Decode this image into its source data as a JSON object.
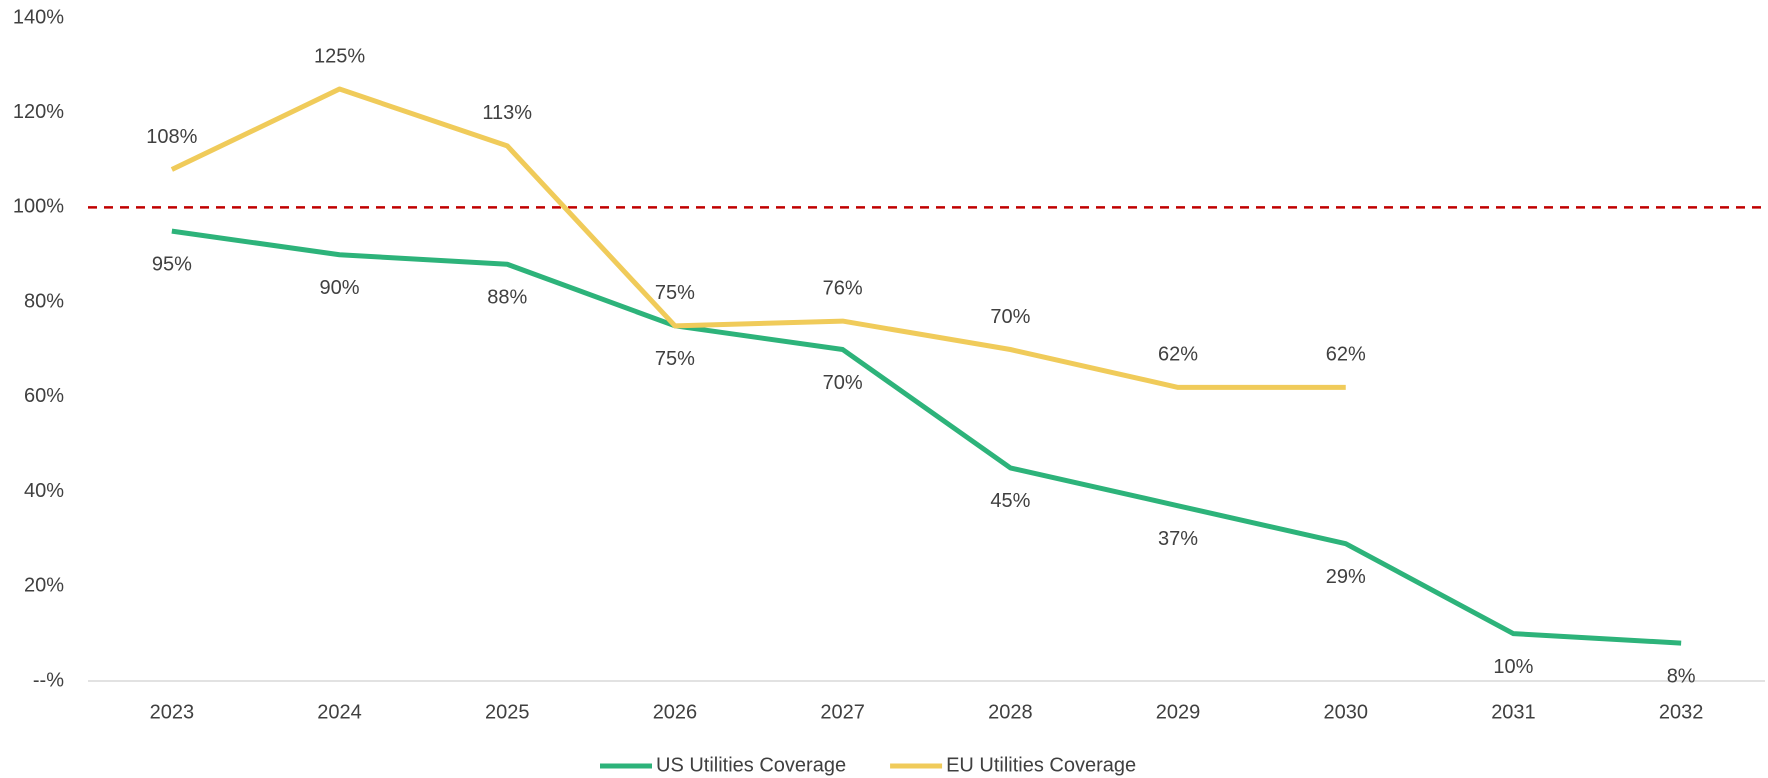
{
  "chart_data": {
    "type": "line",
    "categories": [
      "2023",
      "2024",
      "2025",
      "2026",
      "2027",
      "2028",
      "2029",
      "2030",
      "2031",
      "2032"
    ],
    "series": [
      {
        "name": "US Utilities Coverage",
        "color": "#2db37a",
        "values": [
          95,
          90,
          88,
          75,
          70,
          45,
          37,
          29,
          10,
          8
        ],
        "value_labels": [
          "95%",
          "90%",
          "88%",
          "75%",
          "70%",
          "45%",
          "37%",
          "29%",
          "10%",
          "8%"
        ],
        "label_position": "below"
      },
      {
        "name": "EU Utilities Coverage",
        "color": "#f0cb5a",
        "values": [
          108,
          125,
          113,
          75,
          76,
          70,
          62,
          62,
          null,
          null
        ],
        "value_labels": [
          "108%",
          "125%",
          "113%",
          "75%",
          "76%",
          "70%",
          "62%",
          "62%",
          null,
          null
        ],
        "label_position": "above"
      }
    ],
    "ylim": [
      0,
      140
    ],
    "yticks": [
      {
        "value": 0,
        "label": "--%"
      },
      {
        "value": 20,
        "label": "20%"
      },
      {
        "value": 40,
        "label": "40%"
      },
      {
        "value": 60,
        "label": "60%"
      },
      {
        "value": 80,
        "label": "80%"
      },
      {
        "value": 100,
        "label": "100%"
      },
      {
        "value": 120,
        "label": "120%"
      },
      {
        "value": 140,
        "label": "140%"
      }
    ],
    "reference_line": {
      "value": 100,
      "color": "#c00000"
    },
    "legend": "bottom",
    "grid": false
  }
}
